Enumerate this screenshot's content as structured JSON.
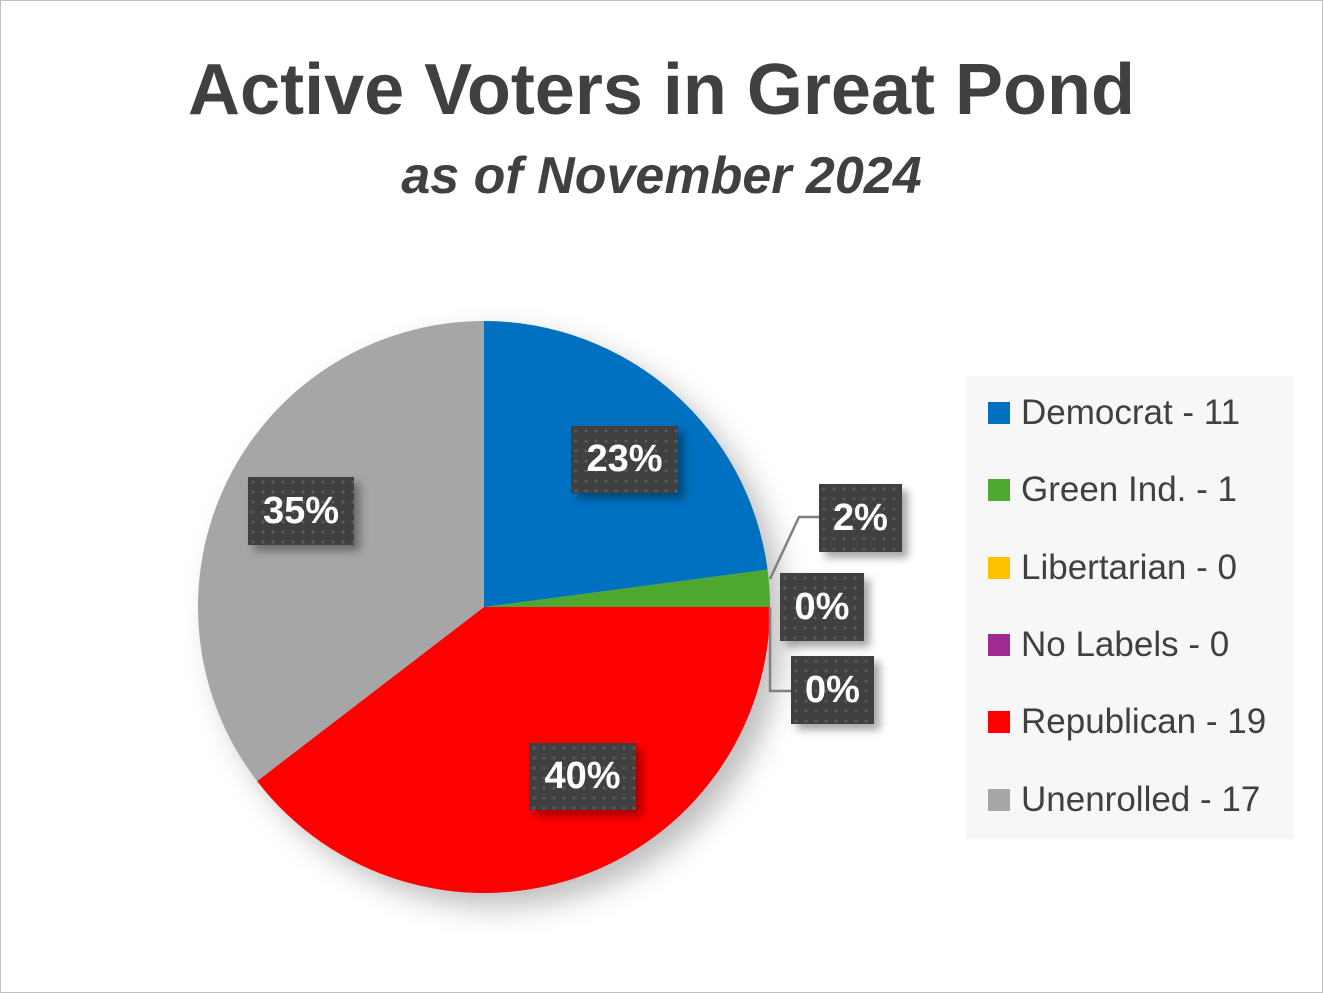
{
  "chart_data": {
    "type": "pie",
    "title": "Active Voters in Great Pond",
    "subtitle": "as of November 2024",
    "categories": [
      "Democrat",
      "Green Ind.",
      "Libertarian",
      "No Labels",
      "Republican",
      "Unenrolled"
    ],
    "values": [
      11,
      1,
      0,
      0,
      19,
      17
    ],
    "data_labels": [
      "23%",
      "2%",
      "0%",
      "0%",
      "40%",
      "35%"
    ],
    "legend_entries": [
      "Democrat - 11",
      "Green Ind. - 1",
      "Libertarian - 0",
      "No Labels - 0",
      "Republican - 19",
      "Unenrolled - 17"
    ],
    "colors": [
      "#0070c0",
      "#4ea72e",
      "#ffc000",
      "#a02b93",
      "#ff0000",
      "#a6a6a6"
    ],
    "legend_position": "right",
    "start_angle": "12 o'clock, clockwise"
  }
}
